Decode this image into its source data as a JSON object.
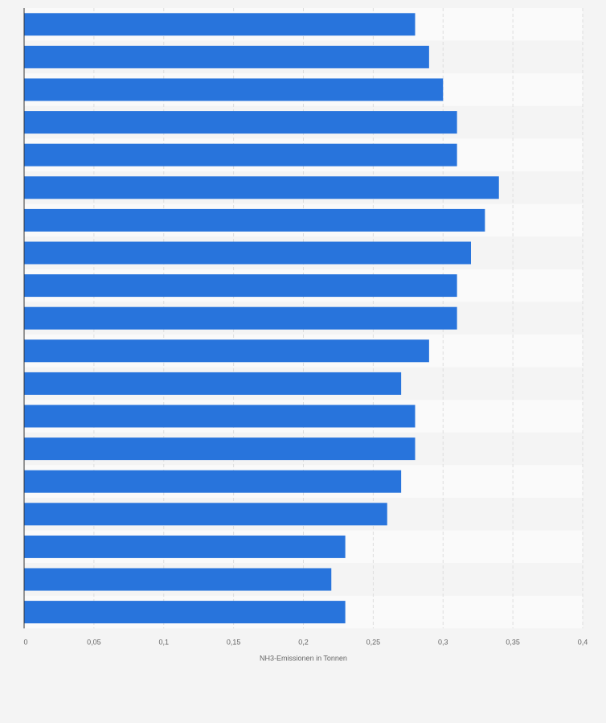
{
  "chart_data": {
    "type": "bar",
    "orientation": "horizontal",
    "title": "",
    "ylabel": "",
    "xlabel": "NH3-Emissionen in Tonnen",
    "xlim": [
      0,
      0.4
    ],
    "x_ticks": [
      0,
      0.05,
      0.1,
      0.15,
      0.2,
      0.25,
      0.3,
      0.35,
      0.4
    ],
    "x_tick_labels": [
      "0",
      "0,05",
      "0,1",
      "0,15",
      "0,2",
      "0,25",
      "0,3",
      "0,35",
      "0,4"
    ],
    "categories": [
      "",
      "",
      "",
      "",
      "",
      "",
      "",
      "",
      "",
      "",
      "",
      "",
      "",
      "",
      "",
      "",
      "",
      "",
      ""
    ],
    "values": [
      0.28,
      0.29,
      0.3,
      0.31,
      0.31,
      0.34,
      0.33,
      0.32,
      0.31,
      0.31,
      0.29,
      0.27,
      0.28,
      0.28,
      0.27,
      0.26,
      0.23,
      0.22,
      0.23
    ],
    "grid": true,
    "legend": "none",
    "colors": {
      "bar": "#2874dc",
      "band_light": "#fafafa",
      "band_dark": "#f4f4f4",
      "grid": "#dddddd",
      "axis": "#333333",
      "text": "#666666"
    }
  }
}
